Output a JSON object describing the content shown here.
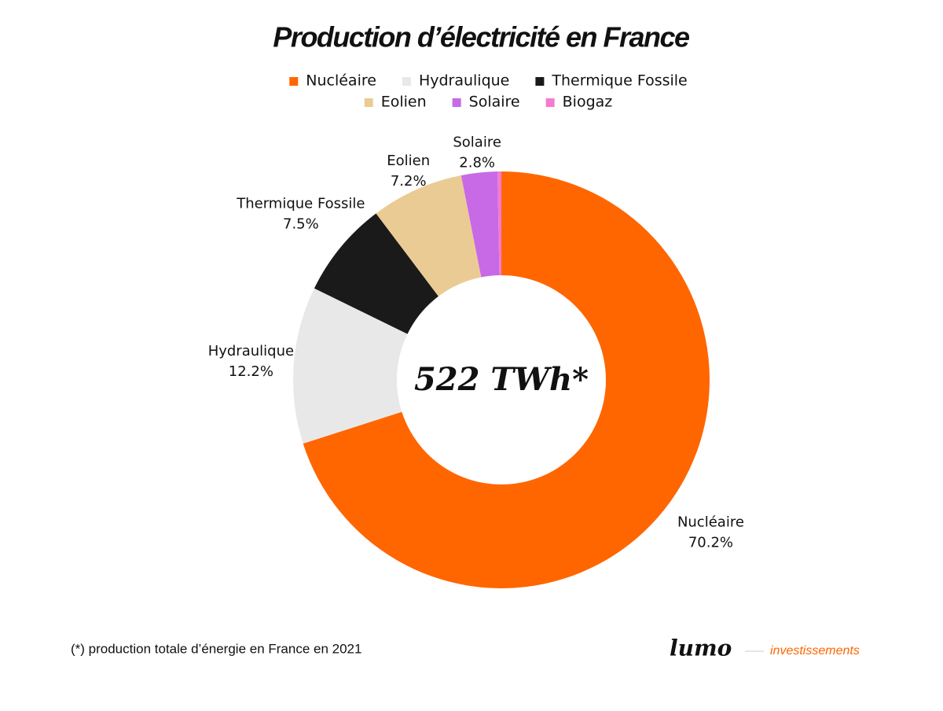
{
  "chart_data": {
    "type": "donut",
    "title": "Production d’électricité en France",
    "categories": [
      "Nucléaire",
      "Hydraulique",
      "Thermique Fossile",
      "Eolien",
      "Solaire",
      "Biogaz"
    ],
    "values": [
      70.2,
      12.2,
      7.5,
      7.2,
      2.8,
      0.3
    ],
    "value_labels": [
      "70.2%",
      "12.2%",
      "7.5%",
      "7.2%",
      "2.8%",
      null
    ],
    "colors": [
      "#ff6600",
      "#e8e8e8",
      "#1a1a1a",
      "#ebcb94",
      "#c86ae6",
      "#f57ad0"
    ],
    "center_label": "522 TWh*",
    "footnote": "(*) production totale d’énergie en France en 2021",
    "brand": "lumo",
    "brand_subtitle": "investissements"
  }
}
